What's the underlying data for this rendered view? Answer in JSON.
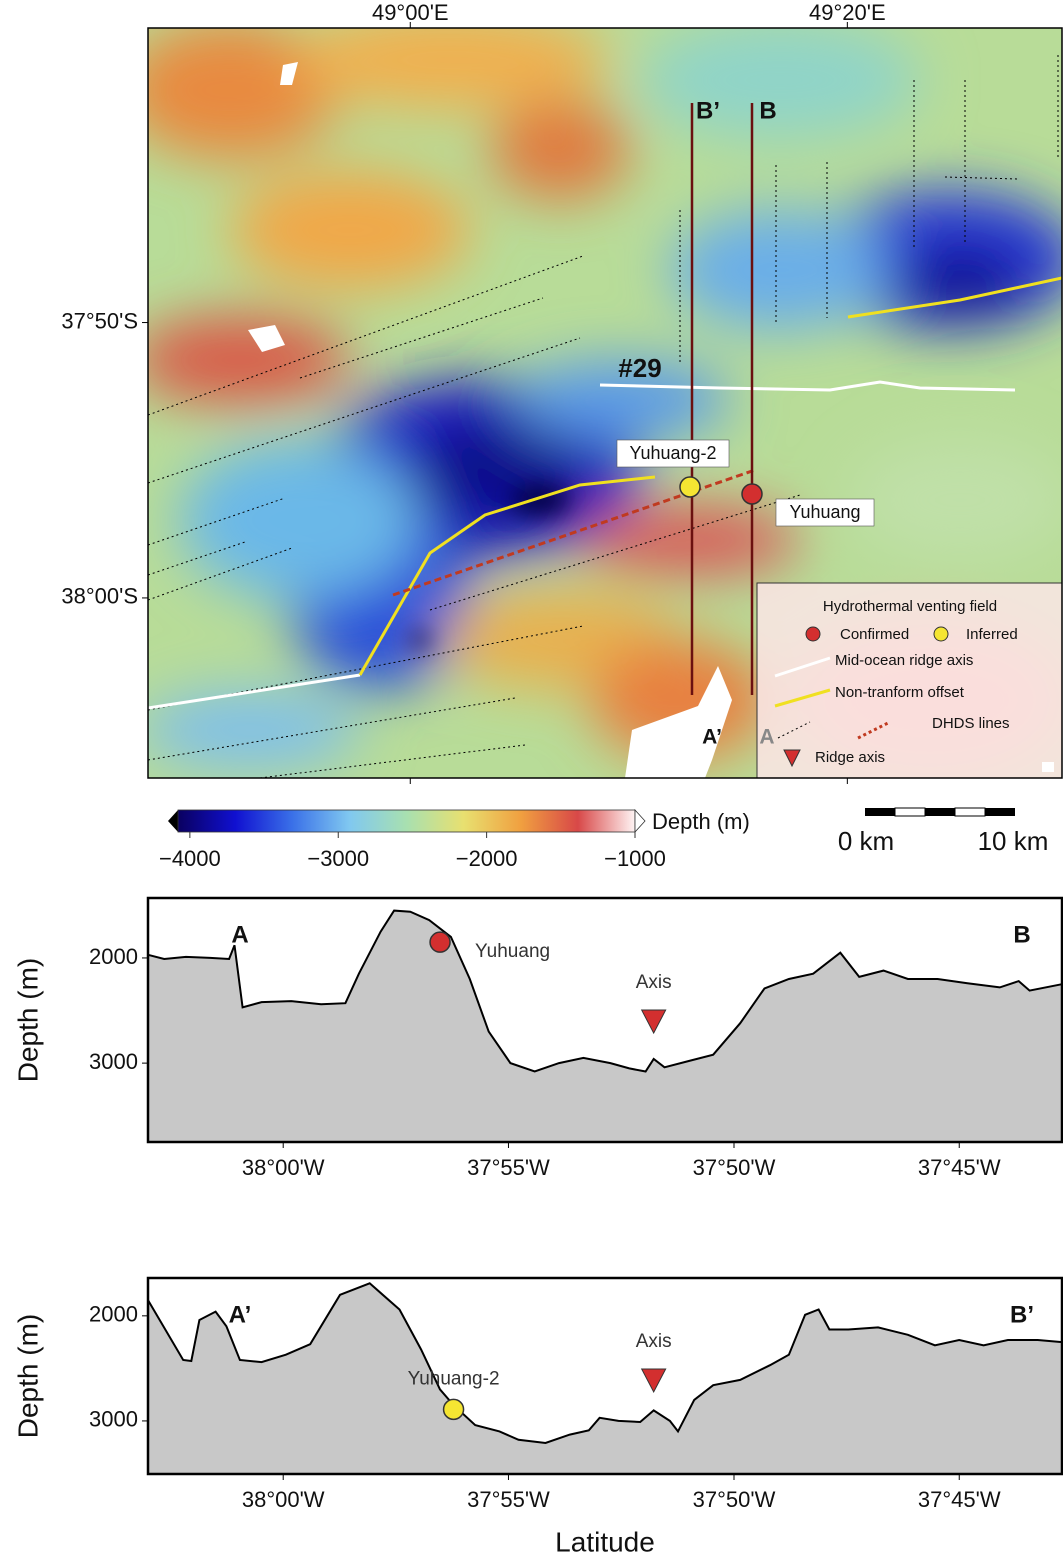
{
  "map": {
    "lonlim": [
      48.8,
      49.497
    ],
    "latlim": [
      -38.109,
      -37.655
    ],
    "lon_ticks": [
      {
        "value": 49,
        "label": "49°00'E"
      },
      {
        "value": 49.3333,
        "label": "49°20'E"
      }
    ],
    "lat_ticks": [
      {
        "value": -37.8333,
        "label": "37°50'S"
      },
      {
        "value": -38,
        "label": "38°00'S"
      }
    ],
    "labels": {
      "b_prime": "B’",
      "b": "B",
      "ridge": "#29",
      "vent_inferred": "Yuhuang-2",
      "vent_confirmed": "Yuhuang",
      "a_prime": "A’",
      "a": "A"
    },
    "legend": {
      "title": "Hydrothermal venting field",
      "confirmed": "Confirmed",
      "inferred": "Inferred",
      "ridge_axis_line": "Mid-ocean ridge axis",
      "offset": "Non-tranform offset",
      "dhds": "DHDS lines",
      "ridge_axis": "Ridge axis"
    },
    "colorbar": {
      "label": "Depth (m)",
      "lim": [
        -4080,
        -1000
      ],
      "ticks": [
        {
          "value": -4000,
          "label": "−4000"
        },
        {
          "value": -3000,
          "label": "−3000"
        },
        {
          "value": -2000,
          "label": "−2000"
        },
        {
          "value": -1000,
          "label": "−1000"
        }
      ],
      "colors": [
        "#0a0060",
        "#1010d0",
        "#3a70e8",
        "#80c8f0",
        "#a8e0b0",
        "#e8e070",
        "#f0a040",
        "#d84848",
        "#fff4f4"
      ]
    },
    "scale_bar": {
      "start": "0 km",
      "end": "10 km"
    }
  },
  "chart_data": [
    {
      "type": "area",
      "ylabel": "Depth (m)",
      "left_label": "A",
      "right_label": "B",
      "color": "#c8c8c8",
      "xlim": [
        -38.05,
        -37.712
      ],
      "ylim": [
        3750,
        1430
      ],
      "xticks": [
        {
          "value": -38,
          "label": "38°00'W"
        },
        {
          "value": -37.9167,
          "label": "37°55'W"
        },
        {
          "value": -37.8333,
          "label": "37°50'W"
        },
        {
          "value": -37.75,
          "label": "37°45'W"
        }
      ],
      "yticks": [
        2000,
        3000
      ],
      "x": [
        -38.05,
        -38.044,
        -38.036,
        -38.027,
        -38.02,
        -38.018,
        -38.015,
        -38.008,
        -37.997,
        -37.986,
        -37.977,
        -37.972,
        -37.964,
        -37.959,
        -37.953,
        -37.946,
        -37.938,
        -37.931,
        -37.924,
        -37.916,
        -37.907,
        -37.898,
        -37.889,
        -37.879,
        -37.872,
        -37.866,
        -37.863,
        -37.859,
        -37.85,
        -37.841,
        -37.831,
        -37.822,
        -37.813,
        -37.804,
        -37.794,
        -37.787,
        -37.778,
        -37.769,
        -37.758,
        -37.747,
        -37.735,
        -37.728,
        -37.724,
        -37.712
      ],
      "values": [
        1970,
        2010,
        1990,
        2000,
        2010,
        1880,
        2470,
        2420,
        2410,
        2440,
        2430,
        2150,
        1750,
        1550,
        1560,
        1640,
        1800,
        2200,
        2700,
        3000,
        3080,
        3000,
        2950,
        3000,
        3050,
        3080,
        2960,
        3040,
        2980,
        2920,
        2620,
        2290,
        2200,
        2150,
        1950,
        2180,
        2120,
        2200,
        2200,
        2240,
        2280,
        2220,
        2310,
        2250
      ],
      "markers": [
        {
          "label": "Yuhuang",
          "shape": "circle",
          "color": "#d32f2f",
          "x": -37.942,
          "y": 1850
        },
        {
          "label": "Axis",
          "shape": "triangle",
          "color": "#d32f2f",
          "x": -37.863,
          "y": 2600
        }
      ]
    },
    {
      "type": "area",
      "ylabel": "Depth (m)",
      "xlabel": "Latitude",
      "left_label": "A’",
      "right_label": "B’",
      "color": "#c8c8c8",
      "xlim": [
        -38.05,
        -37.712
      ],
      "ylim": [
        3505,
        1640
      ],
      "xticks": [
        {
          "value": -38,
          "label": "38°00'W"
        },
        {
          "value": -37.9167,
          "label": "37°55'W"
        },
        {
          "value": -37.8333,
          "label": "37°50'W"
        },
        {
          "value": -37.75,
          "label": "37°45'W"
        }
      ],
      "yticks": [
        2000,
        3000
      ],
      "x": [
        -38.05,
        -38.037,
        -38.034,
        -38.031,
        -38.025,
        -38.021,
        -38.016,
        -38.008,
        -37.999,
        -37.99,
        -37.979,
        -37.968,
        -37.957,
        -37.949,
        -37.942,
        -37.937,
        -37.929,
        -37.92,
        -37.913,
        -37.903,
        -37.894,
        -37.887,
        -37.883,
        -37.876,
        -37.868,
        -37.863,
        -37.857,
        -37.854,
        -37.848,
        -37.841,
        -37.831,
        -37.82,
        -37.813,
        -37.807,
        -37.802,
        -37.798,
        -37.791,
        -37.78,
        -37.769,
        -37.759,
        -37.75,
        -37.741,
        -37.732,
        -37.721,
        -37.712
      ],
      "values": [
        1850,
        2420,
        2430,
        2040,
        1960,
        2100,
        2420,
        2440,
        2370,
        2270,
        1800,
        1690,
        1940,
        2320,
        2700,
        2850,
        3040,
        3100,
        3180,
        3210,
        3130,
        3090,
        2970,
        3000,
        3010,
        2900,
        3000,
        3100,
        2800,
        2660,
        2610,
        2470,
        2370,
        1990,
        1940,
        2130,
        2130,
        2110,
        2180,
        2280,
        2230,
        2280,
        2230,
        2230,
        2250
      ],
      "markers": [
        {
          "label": "Yuhuang-2",
          "shape": "circle",
          "color": "#f5e532",
          "x": -37.937,
          "y": 2890
        },
        {
          "label": "Axis",
          "shape": "triangle",
          "color": "#d32f2f",
          "x": -37.863,
          "y": 2610
        }
      ]
    }
  ]
}
